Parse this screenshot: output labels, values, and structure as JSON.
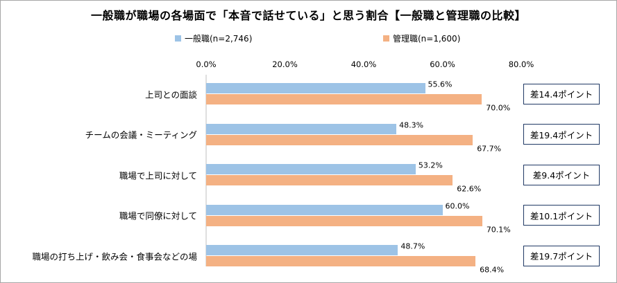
{
  "chart_data": {
    "type": "bar",
    "orientation": "horizontal",
    "title": "一般職が職場の各場面で「本音で話せている」と思う割合【一般職と管理職の比較】",
    "xlim": [
      0,
      80
    ],
    "ticks": [
      "0.0%",
      "20.0%",
      "40.0%",
      "60.0%",
      "80.0%"
    ],
    "tick_values": [
      0,
      20,
      40,
      60,
      80
    ],
    "grid": false,
    "legend_position": "top",
    "categories": [
      "上司との面談",
      "チームの会議・ミーティング",
      "職場で上司に対して",
      "職場で同僚に対して",
      "職場の打ち上げ・飲み会・食事会などの場"
    ],
    "series": [
      {
        "name": "一般職(n=2,746)",
        "color": "#9dc3e6",
        "values": [
          55.6,
          48.3,
          53.2,
          60.0,
          48.7
        ],
        "labels": [
          "55.6%",
          "48.3%",
          "53.2%",
          "60.0%",
          "48.7%"
        ]
      },
      {
        "name": "管理職(n=1,600)",
        "color": "#f4b183",
        "values": [
          70.0,
          67.7,
          62.6,
          70.1,
          68.4
        ],
        "labels": [
          "70.0%",
          "67.7%",
          "62.6%",
          "70.1%",
          "68.4%"
        ]
      }
    ],
    "annotations": [
      "差14.4ポイント",
      "差19.4ポイント",
      "差9.4ポイント",
      "差10.1ポイント",
      "差19.7ポイント"
    ]
  }
}
